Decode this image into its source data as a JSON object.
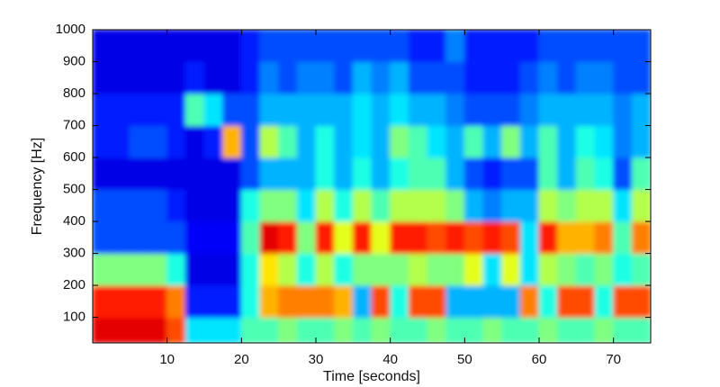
{
  "chart_data": {
    "type": "heatmap",
    "xlabel": "Time [seconds]",
    "ylabel": "Frequency [Hz]",
    "xlim": [
      0,
      75
    ],
    "ylim": [
      20,
      1000
    ],
    "xticks": [
      10,
      20,
      30,
      40,
      50,
      60,
      70
    ],
    "yticks": [
      100,
      200,
      300,
      400,
      500,
      600,
      700,
      800,
      900,
      1000
    ],
    "colormap": "jet",
    "zlim": [
      0,
      1
    ],
    "x_bins": [
      0,
      2.5,
      5,
      7.5,
      10,
      12.5,
      15,
      17.5,
      20,
      22.5,
      25,
      27.5,
      30,
      32.5,
      35,
      37.5,
      40,
      42.5,
      45,
      47.5,
      50,
      52.5,
      55,
      57.5,
      60,
      62.5,
      65,
      67.5,
      70,
      72.5,
      75
    ],
    "y_bins": [
      20,
      100,
      200,
      300,
      400,
      500,
      600,
      700,
      800,
      900,
      1000
    ],
    "z": [
      [
        0.9,
        0.9,
        0.9,
        0.9,
        0.8,
        0.35,
        0.35,
        0.35,
        0.45,
        0.45,
        0.5,
        0.45,
        0.45,
        0.5,
        0.45,
        0.5,
        0.45,
        0.45,
        0.5,
        0.45,
        0.45,
        0.5,
        0.45,
        0.45,
        0.5,
        0.45,
        0.45,
        0.5,
        0.45,
        0.45
      ],
      [
        0.85,
        0.85,
        0.85,
        0.85,
        0.75,
        0.15,
        0.15,
        0.15,
        0.4,
        0.7,
        0.75,
        0.75,
        0.75,
        0.7,
        0.3,
        0.8,
        0.4,
        0.8,
        0.8,
        0.3,
        0.3,
        0.3,
        0.3,
        0.75,
        0.4,
        0.8,
        0.8,
        0.4,
        0.8,
        0.8
      ],
      [
        0.5,
        0.5,
        0.5,
        0.5,
        0.4,
        0.1,
        0.1,
        0.1,
        0.4,
        0.65,
        0.55,
        0.4,
        0.55,
        0.4,
        0.5,
        0.5,
        0.5,
        0.55,
        0.5,
        0.5,
        0.6,
        0.35,
        0.6,
        0.35,
        0.55,
        0.5,
        0.45,
        0.5,
        0.4,
        0.45
      ],
      [
        0.2,
        0.2,
        0.2,
        0.2,
        0.2,
        0.12,
        0.12,
        0.12,
        0.45,
        0.9,
        0.85,
        0.5,
        0.85,
        0.6,
        0.85,
        0.6,
        0.85,
        0.85,
        0.8,
        0.85,
        0.8,
        0.85,
        0.8,
        0.35,
        0.85,
        0.7,
        0.7,
        0.75,
        0.45,
        0.75
      ],
      [
        0.2,
        0.2,
        0.2,
        0.2,
        0.15,
        0.1,
        0.1,
        0.1,
        0.4,
        0.5,
        0.5,
        0.35,
        0.55,
        0.4,
        0.55,
        0.45,
        0.55,
        0.55,
        0.55,
        0.5,
        0.3,
        0.25,
        0.3,
        0.3,
        0.55,
        0.5,
        0.55,
        0.55,
        0.35,
        0.55
      ],
      [
        0.1,
        0.1,
        0.1,
        0.1,
        0.1,
        0.1,
        0.1,
        0.1,
        0.2,
        0.3,
        0.3,
        0.3,
        0.4,
        0.3,
        0.4,
        0.3,
        0.4,
        0.45,
        0.45,
        0.3,
        0.2,
        0.15,
        0.2,
        0.2,
        0.45,
        0.3,
        0.45,
        0.4,
        0.2,
        0.45
      ],
      [
        0.15,
        0.15,
        0.2,
        0.2,
        0.15,
        0.1,
        0.15,
        0.7,
        0.2,
        0.55,
        0.45,
        0.3,
        0.4,
        0.3,
        0.35,
        0.3,
        0.5,
        0.45,
        0.35,
        0.3,
        0.45,
        0.3,
        0.5,
        0.3,
        0.45,
        0.3,
        0.4,
        0.35,
        0.25,
        0.3
      ],
      [
        0.15,
        0.15,
        0.15,
        0.15,
        0.15,
        0.45,
        0.35,
        0.2,
        0.2,
        0.3,
        0.3,
        0.3,
        0.3,
        0.3,
        0.35,
        0.3,
        0.35,
        0.3,
        0.3,
        0.25,
        0.2,
        0.2,
        0.2,
        0.25,
        0.3,
        0.3,
        0.3,
        0.3,
        0.25,
        0.3
      ],
      [
        0.1,
        0.1,
        0.1,
        0.1,
        0.1,
        0.15,
        0.1,
        0.1,
        0.15,
        0.25,
        0.2,
        0.25,
        0.25,
        0.2,
        0.3,
        0.25,
        0.3,
        0.2,
        0.2,
        0.2,
        0.15,
        0.15,
        0.15,
        0.2,
        0.25,
        0.2,
        0.25,
        0.25,
        0.2,
        0.2
      ],
      [
        0.1,
        0.1,
        0.1,
        0.1,
        0.1,
        0.1,
        0.1,
        0.1,
        0.15,
        0.2,
        0.2,
        0.2,
        0.2,
        0.2,
        0.2,
        0.2,
        0.2,
        0.15,
        0.15,
        0.25,
        0.15,
        0.15,
        0.15,
        0.15,
        0.2,
        0.2,
        0.2,
        0.2,
        0.2,
        0.2
      ]
    ]
  }
}
